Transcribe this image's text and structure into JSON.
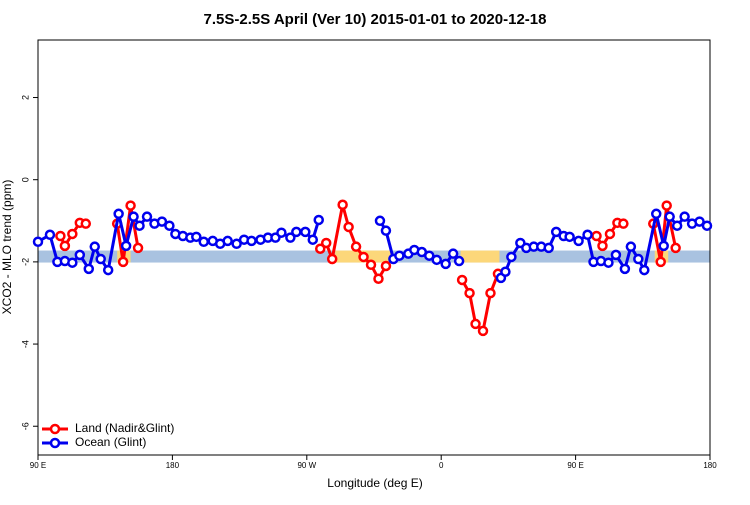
{
  "chart_data": {
    "type": "line",
    "title": "7.5S-2.5S April (Ver 10)   2015-01-01 to 2020-12-18",
    "x_label": "Longitude (deg E)",
    "y_label": "XCO2 - MLO trend (ppm)",
    "xlim": [
      90,
      540
    ],
    "ylim": [
      -6.7,
      3.4
    ],
    "xticks": [
      {
        "value": 90,
        "label": "90 E"
      },
      180,
      {
        "value": 270,
        "label": "90 W"
      },
      {
        "value": 360,
        "label": "0"
      },
      {
        "value": 450,
        "label": "90 E"
      },
      {
        "value": 540,
        "label": "180"
      }
    ],
    "yticks": [
      -6,
      -4,
      -2,
      0,
      2
    ],
    "legend": "bottom-left",
    "bands": [
      {
        "color": "#a9c2e0",
        "x": [
          90,
          540
        ],
        "y": -1.87
      },
      {
        "color": "#fcd77a",
        "x": [
          143,
          152
        ],
        "y": -1.87
      },
      {
        "color": "#fcd77a",
        "x": [
          289,
          327
        ],
        "y": -1.87
      },
      {
        "color": "#fcd77a",
        "x": [
          373,
          399
        ],
        "y": -1.87
      },
      {
        "color": "#fcd77a",
        "x": [
          503,
          512
        ],
        "y": -1.87
      }
    ],
    "series": [
      {
        "name": "Land (Nadir&Glint)",
        "color": "#ff0000",
        "x": [
          105,
          108,
          113,
          118,
          122,
          null,
          143,
          147,
          152,
          157,
          null,
          279,
          283,
          287,
          294,
          298,
          303,
          308,
          313,
          318,
          323,
          null,
          374,
          379,
          383,
          388,
          393,
          398,
          null,
          464,
          468,
          473,
          478,
          482,
          null,
          502,
          507,
          511,
          517
        ],
        "values": [
          -1.37,
          -1.61,
          -1.32,
          -1.05,
          -1.07,
          null,
          -1.07,
          -2.0,
          -0.63,
          -1.66,
          null,
          -1.68,
          -1.54,
          -1.93,
          -0.61,
          -1.15,
          -1.63,
          -1.88,
          -2.07,
          -2.41,
          -2.1,
          null,
          -2.44,
          -2.76,
          -3.51,
          -3.68,
          -2.76,
          -2.29,
          null,
          -1.37,
          -1.61,
          -1.32,
          -1.05,
          -1.07,
          null,
          -1.07,
          -2.0,
          -0.63,
          -1.66
        ]
      },
      {
        "name": "Ocean (Glint)",
        "color": "#0000ee",
        "x": [
          90,
          98,
          103,
          108,
          113,
          118,
          124,
          128,
          132,
          137,
          144,
          149,
          154,
          158,
          163,
          168,
          173,
          178,
          182,
          187,
          192,
          196,
          201,
          207,
          212,
          217,
          223,
          228,
          233,
          239,
          244,
          249,
          253,
          259,
          263,
          269,
          274,
          278,
          null,
          319,
          323,
          328,
          332,
          338,
          342,
          347,
          352,
          357,
          363,
          368,
          372,
          null,
          400,
          403,
          407,
          413,
          417,
          422,
          427,
          432,
          437,
          442,
          446,
          452,
          458,
          462,
          467,
          472,
          477,
          483,
          487,
          492,
          496,
          504,
          509,
          513,
          518,
          523,
          528,
          533,
          538
        ],
        "values": [
          -1.51,
          -1.34,
          -2.0,
          -1.98,
          -2.02,
          -1.83,
          -2.17,
          -1.63,
          -1.93,
          -2.2,
          -0.83,
          -1.61,
          -0.9,
          -1.12,
          -0.9,
          -1.07,
          -1.02,
          -1.12,
          -1.32,
          -1.37,
          -1.41,
          -1.39,
          -1.51,
          -1.49,
          -1.56,
          -1.49,
          -1.56,
          -1.46,
          -1.49,
          -1.46,
          -1.41,
          -1.41,
          -1.29,
          -1.41,
          -1.27,
          -1.27,
          -1.46,
          -0.98,
          null,
          -1.0,
          -1.24,
          -1.93,
          -1.85,
          -1.8,
          -1.71,
          -1.76,
          -1.85,
          -1.95,
          -2.05,
          -1.8,
          -1.98,
          null,
          -2.39,
          -2.24,
          -1.88,
          -1.54,
          -1.66,
          -1.63,
          -1.63,
          -1.66,
          -1.27,
          -1.37,
          -1.39,
          -1.49,
          -1.34,
          -2.0,
          -1.98,
          -2.02,
          -1.83,
          -2.17,
          -1.63,
          -1.93,
          -2.2,
          -0.83,
          -1.61,
          -0.9,
          -1.12,
          -0.9,
          -1.07,
          -1.02,
          -1.12
        ]
      }
    ]
  }
}
